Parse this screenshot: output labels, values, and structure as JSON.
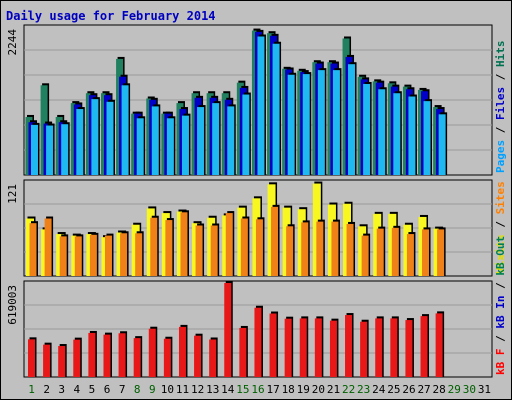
{
  "chart_data": {
    "title": "Daily usage for February 2014",
    "type": "bar",
    "days": [
      1,
      2,
      3,
      4,
      5,
      6,
      7,
      8,
      9,
      10,
      11,
      12,
      13,
      14,
      15,
      16,
      17,
      18,
      19,
      20,
      21,
      22,
      23,
      24,
      25,
      26,
      27,
      28,
      29,
      30,
      31
    ],
    "day_label_colors": [
      "#006000",
      "#000000",
      "#000000",
      "#000000",
      "#000000",
      "#000000",
      "#000000",
      "#006000",
      "#006000",
      "#000000",
      "#000000",
      "#000000",
      "#000000",
      "#000000",
      "#006000",
      "#006000",
      "#000000",
      "#000000",
      "#000000",
      "#000000",
      "#000000",
      "#006000",
      "#006000",
      "#000000",
      "#000000",
      "#000000",
      "#000000",
      "#000000",
      "#006000",
      "#006000",
      "#000000"
    ],
    "panels": [
      {
        "id": "top",
        "max_label": "2244",
        "ylim": [
          0,
          2244
        ],
        "legend": [
          {
            "text": "Pages",
            "color": "#00a0ff"
          },
          {
            "text": " / ",
            "color": "#000000"
          },
          {
            "text": "Files",
            "color": "#0000c8"
          },
          {
            "text": " / ",
            "color": "#000000"
          },
          {
            "text": "Hits",
            "color": "#007050"
          }
        ],
        "series": [
          {
            "name": "Hits",
            "color": "#208060",
            "values": [
              880,
              1360,
              880,
              1090,
              1240,
              1240,
              1760,
              930,
              1160,
              930,
              1090,
              1240,
              1240,
              1240,
              1400,
              2190,
              2150,
              1610,
              1580,
              1710,
              1710,
              2070,
              1490,
              1420,
              1390,
              1340,
              1290,
              1030,
              null,
              null,
              null
            ]
          },
          {
            "name": "Files",
            "color": "#0000c8",
            "values": [
              800,
              780,
              800,
              1070,
              1210,
              1210,
              1490,
              930,
              1140,
              930,
              1000,
              1170,
              1170,
              1140,
              1320,
              2170,
              2110,
              1600,
              1560,
              1690,
              1690,
              1790,
              1450,
              1400,
              1340,
              1300,
              1270,
              1000,
              null,
              null,
              null
            ]
          },
          {
            "name": "Pages",
            "color": "#20b8f0",
            "values": [
              760,
              750,
              770,
              1000,
              1150,
              1110,
              1360,
              860,
              1040,
              860,
              900,
              1030,
              1090,
              1040,
              1220,
              2100,
              1990,
              1520,
              1530,
              1590,
              1590,
              1680,
              1380,
              1300,
              1240,
              1190,
              1120,
              920,
              null,
              null,
              null
            ]
          }
        ]
      },
      {
        "id": "mid",
        "max_label": "121",
        "ylim": [
          0,
          121
        ],
        "legend": [
          {
            "text": "Visits",
            "color": "#e0e000"
          },
          {
            "text": " / ",
            "color": "#000000"
          },
          {
            "text": "Sites",
            "color": "#ff8000"
          }
        ],
        "series": [
          {
            "name": "Visits",
            "color": "#f8f820",
            "values": [
              74,
              60,
              54,
              52,
              54,
              50,
              56,
              66,
              87,
              81,
              83,
              68,
              75,
              78,
              88,
              100,
              118,
              88,
              86,
              119,
              92,
              93,
              64,
              80,
              80,
              66,
              76,
              61,
              null,
              null,
              null
            ]
          },
          {
            "name": "Sites",
            "color": "#f08018",
            "values": [
              68,
              74,
              51,
              51,
              53,
              52,
              55,
              55,
              75,
              72,
              82,
              65,
              65,
              81,
              74,
              73,
              89,
              64,
              69,
              70,
              70,
              67,
              52,
              61,
              62,
              54,
              60,
              60,
              null,
              null,
              null
            ]
          }
        ]
      },
      {
        "id": "bot",
        "max_label": "619003",
        "ylim": [
          0,
          619003
        ],
        "legend": [
          {
            "text": "kB F",
            "color": "#ff0000"
          },
          {
            "text": " / ",
            "color": "#000000"
          },
          {
            "text": "kB In",
            "color": "#0000c8"
          },
          {
            "text": " / ",
            "color": "#000000"
          },
          {
            "text": "kB Out",
            "color": "#008050"
          }
        ],
        "series": [
          {
            "name": "kB F",
            "color": "#e81818",
            "values": [
              248000,
              213000,
              204000,
              246000,
              290000,
              279000,
              288000,
              256000,
              318000,
              252000,
              330000,
              272000,
              247000,
              619000,
              323000,
              456000,
              418000,
              384000,
              386000,
              386000,
              371000,
              408000,
              364000,
              386000,
              386000,
              375000,
              401000,
              419000,
              null,
              null,
              null
            ]
          }
        ]
      }
    ]
  }
}
